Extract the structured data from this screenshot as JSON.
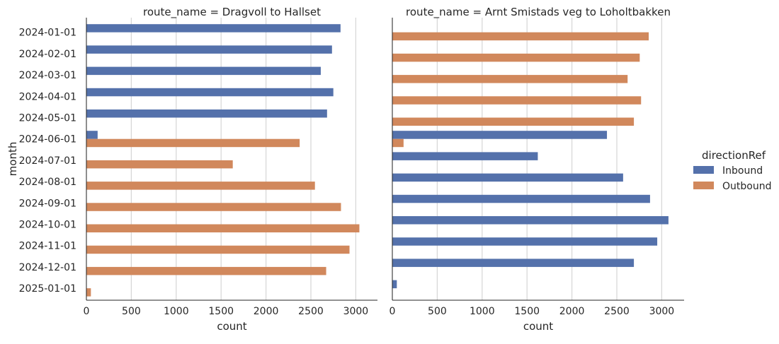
{
  "chart_data": {
    "type": "bar",
    "orientation": "horizontal",
    "ylabel": "month",
    "categories": [
      "2024-01-01",
      "2024-02-01",
      "2024-03-01",
      "2024-04-01",
      "2024-05-01",
      "2024-06-01",
      "2024-07-01",
      "2024-08-01",
      "2024-09-01",
      "2024-10-01",
      "2024-11-01",
      "2024-12-01",
      "2025-01-01"
    ],
    "xticks": [
      0,
      500,
      1000,
      1500,
      2000,
      2500,
      3000
    ],
    "xlim": [
      0,
      3250
    ],
    "grid": "vertical",
    "legend": {
      "title": "directionRef",
      "placement": "right",
      "entries": [
        {
          "name": "Inbound",
          "color": "#5471ab"
        },
        {
          "name": "Outbound",
          "color": "#d1885c"
        }
      ]
    },
    "panels": [
      {
        "title": "route_name = Dragvoll to Hallset",
        "xlabel": "count",
        "series": [
          {
            "name": "Inbound",
            "values": [
              2830,
              2735,
              2610,
              2750,
              2680,
              125,
              0,
              0,
              0,
              0,
              0,
              0,
              0
            ]
          },
          {
            "name": "Outbound",
            "values": [
              0,
              0,
              0,
              0,
              0,
              2375,
              1630,
              2545,
              2835,
              3040,
              2930,
              2670,
              50
            ]
          }
        ]
      },
      {
        "title": "route_name = Arnt Smistads veg to Loholtbakken",
        "xlabel": "count",
        "series": [
          {
            "name": "Inbound",
            "values": [
              0,
              0,
              0,
              0,
              0,
              2390,
              1620,
              2570,
              2870,
              3075,
              2950,
              2690,
              50
            ]
          },
          {
            "name": "Outbound",
            "values": [
              2855,
              2755,
              2620,
              2770,
              2690,
              125,
              0,
              0,
              0,
              0,
              0,
              0,
              0
            ]
          }
        ]
      }
    ]
  }
}
